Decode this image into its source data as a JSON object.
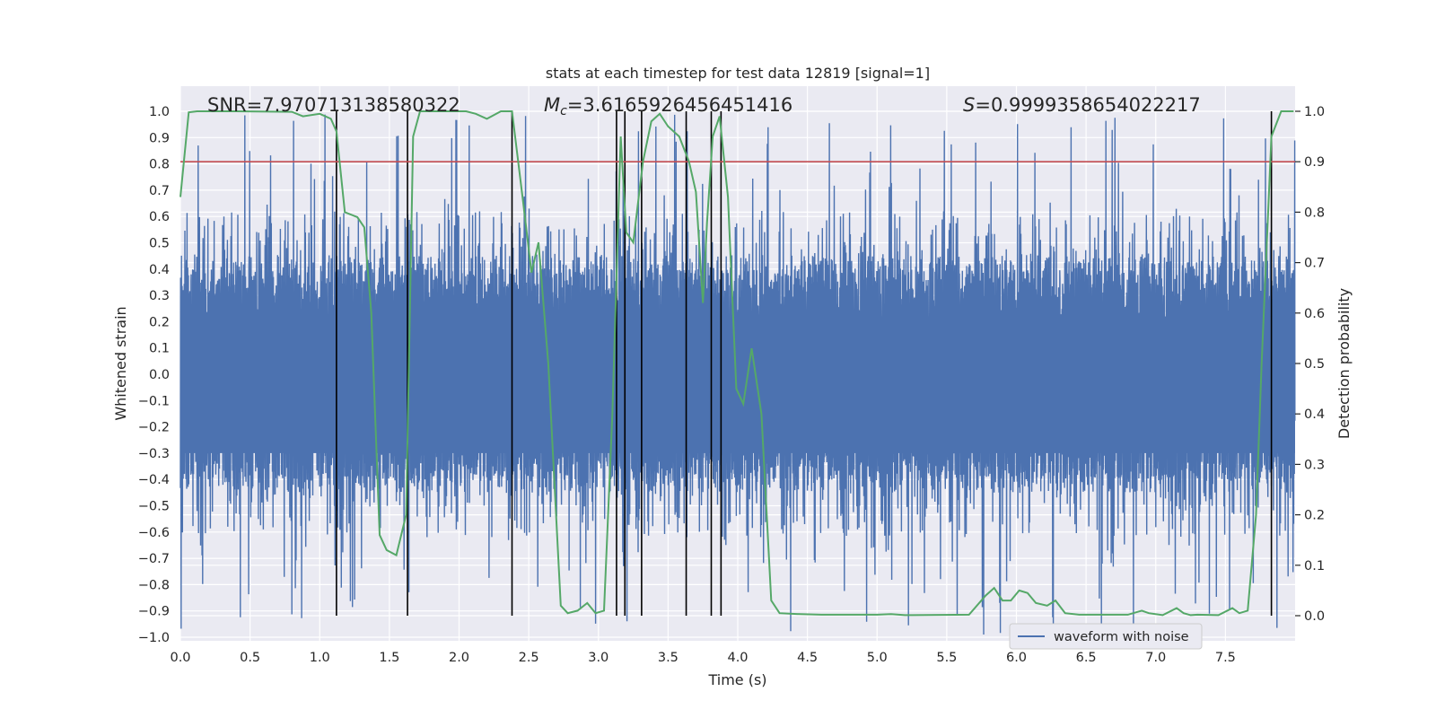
{
  "chart_data": {
    "type": "line",
    "title": "stats at each timestep for test data 12819 [signal=1]",
    "xlabel": "Time (s)",
    "ylabel": "Whitened strain",
    "ylabel_right": "Detection probability",
    "xlim": [
      0.0,
      8.0
    ],
    "ylim": [
      -1.0,
      1.0
    ],
    "ylim_right": [
      0.0,
      1.0
    ],
    "x_ticks": [
      "0.0",
      "0.5",
      "1.0",
      "1.5",
      "2.0",
      "2.5",
      "3.0",
      "3.5",
      "4.0",
      "4.5",
      "5.0",
      "5.5",
      "6.0",
      "6.5",
      "7.0",
      "7.5"
    ],
    "y_ticks": [
      "1.0",
      "0.9",
      "0.8",
      "0.7",
      "0.6",
      "0.5",
      "0.4",
      "0.3",
      "0.2",
      "0.1",
      "0.0",
      "-0.1",
      "-0.2",
      "-0.3",
      "-0.4",
      "-0.5",
      "-0.6",
      "-0.7",
      "-0.8",
      "-0.9",
      "-1.0"
    ],
    "y_ticks_right": [
      "1.0",
      "0.9",
      "0.8",
      "0.7",
      "0.6",
      "0.5",
      "0.4",
      "0.3",
      "0.2",
      "0.1",
      "0.0"
    ],
    "grid": true,
    "legend_position": "bottom-right",
    "annotations": {
      "snr": "SNR=7.970713138580322",
      "mc_symbol": "M",
      "mc_sub": "c",
      "mc_value": "=3.6165926456451416",
      "s_symbol": "S",
      "s_value": "=0.9999358654022217"
    },
    "colors": {
      "waveform": "#4c72b0",
      "probability": "#55a868",
      "threshold": "#c44e52",
      "markers": "#000000",
      "plot_bg": "#eaeaf2",
      "grid": "#ffffff"
    },
    "series": [
      {
        "name": "waveform with noise",
        "kind": "noise",
        "axis": "left",
        "typical_envelope_pos": 0.42,
        "typical_envelope_neg": -0.38,
        "max_abs_peak": 0.99,
        "value_range": [
          -0.99,
          0.99
        ]
      },
      {
        "kind": "detection-probability",
        "axis": "right",
        "x": [
          0.0,
          0.06,
          0.12,
          0.4,
          0.8,
          0.88,
          1.0,
          1.08,
          1.12,
          1.18,
          1.27,
          1.32,
          1.37,
          1.43,
          1.48,
          1.55,
          1.62,
          1.67,
          1.72,
          1.85,
          2.05,
          2.12,
          2.2,
          2.3,
          2.38,
          2.46,
          2.52,
          2.57,
          2.64,
          2.73,
          2.78,
          2.85,
          2.92,
          2.98,
          3.04,
          3.1,
          3.16,
          3.2,
          3.25,
          3.32,
          3.38,
          3.44,
          3.5,
          3.58,
          3.65,
          3.7,
          3.75,
          3.78,
          3.82,
          3.87,
          3.93,
          3.99,
          4.04,
          4.1,
          4.17,
          4.24,
          4.3,
          4.45,
          4.6,
          5.0,
          5.1,
          5.2,
          5.66,
          5.78,
          5.84,
          5.9,
          5.96,
          6.02,
          6.08,
          6.14,
          6.22,
          6.28,
          6.35,
          6.45,
          6.8,
          6.9,
          6.95,
          7.05,
          7.15,
          7.2,
          7.25,
          7.3,
          7.45,
          7.55,
          7.6,
          7.66,
          7.72,
          7.76,
          7.83,
          7.9,
          7.93,
          7.99
        ],
        "y": [
          0.83,
          0.998,
          1.0,
          1.0,
          0.999,
          0.99,
          0.995,
          0.985,
          0.96,
          0.8,
          0.79,
          0.77,
          0.6,
          0.16,
          0.13,
          0.12,
          0.2,
          0.95,
          1.0,
          1.0,
          1.0,
          0.995,
          0.985,
          1.0,
          1.0,
          0.82,
          0.68,
          0.74,
          0.5,
          0.02,
          0.005,
          0.01,
          0.025,
          0.005,
          0.01,
          0.4,
          0.95,
          0.76,
          0.74,
          0.9,
          0.98,
          0.995,
          0.97,
          0.95,
          0.9,
          0.84,
          0.62,
          0.78,
          0.95,
          0.99,
          0.83,
          0.45,
          0.42,
          0.53,
          0.4,
          0.03,
          0.005,
          0.003,
          0.002,
          0.002,
          0.003,
          0.001,
          0.002,
          0.04,
          0.055,
          0.03,
          0.03,
          0.05,
          0.045,
          0.025,
          0.02,
          0.03,
          0.005,
          0.002,
          0.002,
          0.01,
          0.005,
          0.001,
          0.015,
          0.005,
          0.001,
          0.002,
          0.001,
          0.015,
          0.005,
          0.01,
          0.2,
          0.5,
          0.95,
          1.0,
          1.0,
          1.0
        ]
      },
      {
        "kind": "threshold",
        "axis": "right",
        "value": 0.9
      },
      {
        "kind": "event-markers",
        "axis": "right",
        "x": [
          1.12,
          1.63,
          2.38,
          3.13,
          3.19,
          3.31,
          3.63,
          3.81,
          3.88,
          7.83
        ],
        "y_range": [
          0.0,
          1.0
        ]
      }
    ]
  },
  "legend": {
    "waveform_label": "waveform with noise"
  }
}
